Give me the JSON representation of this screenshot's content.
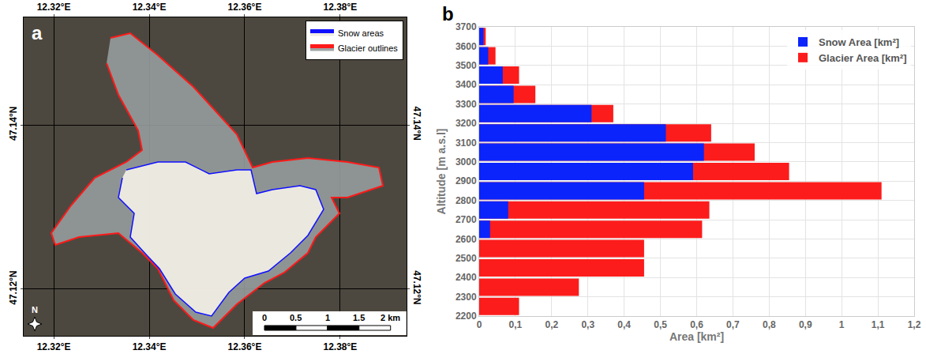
{
  "chart_data": [
    {
      "type": "map",
      "panel": "a",
      "xlim": [
        12.3137,
        12.3939
      ],
      "xticks": [
        {
          "value": 12.32,
          "label": "12.32°E"
        },
        {
          "value": 12.34,
          "label": "12.34°E"
        },
        {
          "value": 12.36,
          "label": "12.36°E"
        },
        {
          "value": 12.38,
          "label": "12.38°E"
        }
      ],
      "ylim": [
        47.1143,
        47.1531
      ],
      "yticks": [
        {
          "value": 47.12,
          "label": "47.12°N"
        },
        {
          "value": 47.14,
          "label": "47.14°N"
        }
      ],
      "grid": true,
      "legend": "upper right",
      "series": [
        {
          "name": "Snow areas",
          "color": "#1010ff"
        },
        {
          "name": "Glacier outlines",
          "color": "#ff1a1a"
        }
      ],
      "scale_bar": [
        0,
        0.5,
        1,
        1.5,
        {
          "value": 2,
          "label": "2 km"
        }
      ],
      "north": "N"
    },
    {
      "type": "bar",
      "panel": "b",
      "orientation": "horizontal",
      "x_label": "Area [km²]",
      "y_label": "Altitude [m a.s.l]",
      "bins": [
        2200,
        2300,
        2400,
        2500,
        2600,
        2700,
        2800,
        2900,
        3000,
        3100,
        3200,
        3300,
        3400,
        3500,
        3600,
        3700
      ],
      "series": [
        {
          "name": "Snow Area [km²]",
          "color": "#0b24fb",
          "values": [
            0,
            0,
            0,
            0,
            0.03,
            0.08,
            0.455,
            0.59,
            0.62,
            0.515,
            0.31,
            0.095,
            0.065,
            0.025,
            0.012
          ]
        },
        {
          "name": "Glacier Area [km²]",
          "color": "#fc1c1c",
          "values": [
            0.11,
            0.275,
            0.455,
            0.455,
            0.615,
            0.635,
            1.11,
            0.855,
            0.76,
            0.64,
            0.37,
            0.155,
            0.11,
            0.045,
            0.018
          ]
        }
      ],
      "xlim": [
        0,
        1.2
      ],
      "xticks": [
        0,
        {
          "value": 0.1,
          "label": "0,1"
        },
        {
          "value": 0.2,
          "label": "0,2"
        },
        {
          "value": 0.3,
          "label": "0,3"
        },
        {
          "value": 0.4,
          "label": "0,4"
        },
        {
          "value": 0.5,
          "label": "0,5"
        },
        {
          "value": 0.6,
          "label": "0,6"
        },
        {
          "value": 0.7,
          "label": "0,7"
        },
        {
          "value": 0.8,
          "label": "0,8"
        },
        {
          "value": 0.9,
          "label": "0,9"
        },
        1,
        {
          "value": 1.1,
          "label": "1,1"
        },
        {
          "value": 1.2,
          "label": "1,2"
        }
      ],
      "ylim": [
        2200,
        3700
      ],
      "yticks": [
        2200,
        2300,
        2400,
        2500,
        2600,
        2700,
        2800,
        2900,
        3000,
        3100,
        3200,
        3300,
        3400,
        3500,
        3600,
        3700
      ],
      "grid": true,
      "legend": "upper right"
    }
  ]
}
